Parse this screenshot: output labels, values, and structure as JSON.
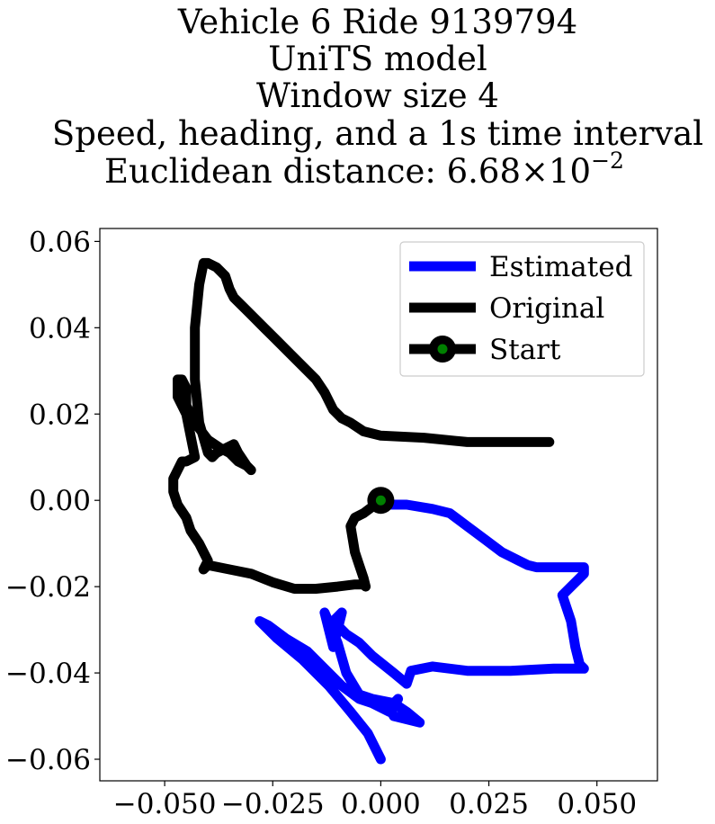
{
  "chart_data": {
    "type": "line",
    "title_lines": [
      "Vehicle 6 Ride 9139794",
      "UniTS model",
      "Window size 4",
      "Speed, heading, and a 1s time interval",
      "Euclidean distance: 6.68×10"
    ],
    "title_exponent": "−2",
    "xlabel": "",
    "ylabel": "",
    "xlim": [
      -0.065,
      0.064
    ],
    "ylim": [
      -0.065,
      0.063
    ],
    "xticks": [
      -0.05,
      -0.025,
      0.0,
      0.025,
      0.05
    ],
    "xtick_labels": [
      "−0.050",
      "−0.025",
      "0.000",
      "0.025",
      "0.050"
    ],
    "yticks": [
      0.06,
      0.04,
      0.02,
      0.0,
      -0.02,
      -0.04,
      -0.06
    ],
    "ytick_labels": [
      "0.06",
      "0.04",
      "0.02",
      "0.00",
      "−0.02",
      "−0.04",
      "−0.06"
    ],
    "grid": false,
    "legend_position": "top-right",
    "series": [
      {
        "name": "Estimated",
        "color": "#0000ff",
        "x": [
          0.0,
          0.006,
          0.012,
          0.016,
          0.02,
          0.024,
          0.028,
          0.032,
          0.034,
          0.036,
          0.04,
          0.047,
          0.047,
          0.042,
          0.044,
          0.045,
          0.046,
          0.047,
          0.04,
          0.03,
          0.02,
          0.012,
          0.007,
          0.006,
          0.003,
          -0.002,
          -0.005,
          -0.008,
          -0.011,
          -0.009,
          -0.01,
          -0.011,
          -0.013,
          -0.01,
          -0.008,
          -0.005,
          -0.002,
          0.003,
          0.006,
          0.009,
          0.003,
          0.002,
          0.004,
          0.002,
          -0.002,
          -0.005,
          -0.009,
          -0.012,
          -0.017,
          -0.022,
          -0.026,
          -0.028,
          -0.024,
          -0.018,
          -0.012,
          -0.007,
          -0.003,
          0.0
        ],
        "y": [
          -0.001,
          -0.001,
          -0.002,
          -0.003,
          -0.006,
          -0.009,
          -0.012,
          -0.014,
          -0.015,
          -0.0155,
          -0.0155,
          -0.0155,
          -0.017,
          -0.022,
          -0.028,
          -0.034,
          -0.038,
          -0.039,
          -0.039,
          -0.0395,
          -0.0395,
          -0.0385,
          -0.0395,
          -0.0425,
          -0.04,
          -0.036,
          -0.033,
          -0.031,
          -0.028,
          -0.026,
          -0.03,
          -0.034,
          -0.026,
          -0.033,
          -0.04,
          -0.045,
          -0.046,
          -0.047,
          -0.049,
          -0.0515,
          -0.05,
          -0.048,
          -0.046,
          -0.049,
          -0.047,
          -0.046,
          -0.043,
          -0.04,
          -0.035,
          -0.032,
          -0.029,
          -0.028,
          -0.032,
          -0.037,
          -0.043,
          -0.049,
          -0.054,
          -0.06
        ]
      },
      {
        "name": "Original",
        "color": "#000000",
        "x": [
          0.0,
          -0.004,
          -0.006,
          -0.007,
          -0.0065,
          -0.006,
          -0.005,
          -0.004,
          -0.0035,
          -0.004,
          -0.006,
          -0.01,
          -0.015,
          -0.02,
          -0.025,
          -0.03,
          -0.035,
          -0.04,
          -0.041,
          -0.04,
          -0.042,
          -0.044,
          -0.045,
          -0.047,
          -0.048,
          -0.048,
          -0.047,
          -0.046,
          -0.045,
          -0.043,
          -0.044,
          -0.045,
          -0.046,
          -0.047,
          -0.047,
          -0.046,
          -0.045,
          -0.045,
          -0.043,
          -0.04,
          -0.037,
          -0.035,
          -0.033,
          -0.031,
          -0.03,
          -0.031,
          -0.033,
          -0.034,
          -0.036,
          -0.038,
          -0.039,
          -0.04,
          -0.042,
          -0.043,
          -0.043,
          -0.042,
          -0.041,
          -0.04,
          -0.038,
          -0.036,
          -0.035,
          -0.034,
          -0.032,
          -0.03,
          -0.027,
          -0.024,
          -0.021,
          -0.018,
          -0.015,
          -0.013,
          -0.011,
          -0.009,
          -0.007,
          -0.004,
          0.0,
          0.01,
          0.02,
          0.025,
          0.03,
          0.035,
          0.039
        ],
        "y": [
          0.0,
          -0.003,
          -0.004,
          -0.006,
          -0.009,
          -0.012,
          -0.015,
          -0.018,
          -0.02,
          -0.0195,
          -0.0195,
          -0.02,
          -0.0205,
          -0.0205,
          -0.019,
          -0.017,
          -0.016,
          -0.015,
          -0.016,
          -0.014,
          -0.01,
          -0.007,
          -0.004,
          -0.001,
          0.002,
          0.005,
          0.007,
          0.009,
          0.009,
          0.01,
          0.015,
          0.02,
          0.022,
          0.024,
          0.028,
          0.028,
          0.026,
          0.022,
          0.018,
          0.014,
          0.012,
          0.011,
          0.009,
          0.008,
          0.007,
          0.008,
          0.011,
          0.013,
          0.012,
          0.011,
          0.01,
          0.011,
          0.018,
          0.028,
          0.04,
          0.05,
          0.055,
          0.055,
          0.054,
          0.052,
          0.049,
          0.047,
          0.045,
          0.043,
          0.04,
          0.037,
          0.034,
          0.031,
          0.028,
          0.025,
          0.021,
          0.019,
          0.018,
          0.016,
          0.015,
          0.0145,
          0.0135,
          0.0135,
          0.0135,
          0.0135,
          0.0135
        ]
      }
    ],
    "start_point": {
      "name": "Start",
      "x": 0.0,
      "y": 0.0,
      "color": "#008000"
    }
  }
}
